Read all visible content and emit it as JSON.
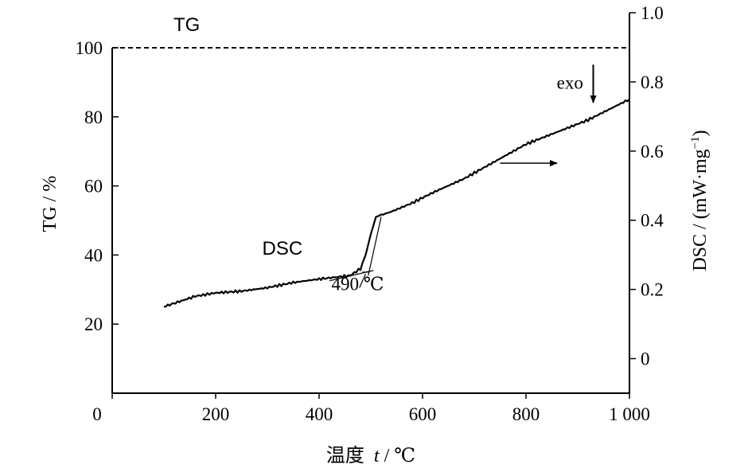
{
  "chart_data": {
    "type": "line",
    "title": "",
    "x_axis": {
      "label_prefix": "温度",
      "label_var": "t",
      "label_suffix": " / ℃",
      "range": [
        0,
        1000
      ],
      "ticks": [
        {
          "value": 0,
          "label": "0"
        },
        {
          "value": 200,
          "label": "200"
        },
        {
          "value": 400,
          "label": "400"
        },
        {
          "value": 600,
          "label": "600"
        },
        {
          "value": 800,
          "label": "800"
        },
        {
          "value": 1000,
          "label": "1 000"
        }
      ]
    },
    "y_left": {
      "label": "TG / %",
      "range": [
        0,
        100
      ],
      "ticks": [
        {
          "value": 20,
          "label": "20"
        },
        {
          "value": 40,
          "label": "40"
        },
        {
          "value": 60,
          "label": "60"
        },
        {
          "value": 80,
          "label": "80"
        },
        {
          "value": 100,
          "label": "100"
        }
      ]
    },
    "y_right": {
      "label_main": "DSC / (mW·mg",
      "label_sup": "−1",
      "label_close": ")",
      "range": [
        -0.1,
        1.0
      ],
      "ticks": [
        {
          "value": 0,
          "label": "0"
        },
        {
          "value": 0.2,
          "label": "0.2"
        },
        {
          "value": 0.4,
          "label": "0.4"
        },
        {
          "value": 0.6,
          "label": "0.6"
        },
        {
          "value": 0.8,
          "label": "0.8"
        },
        {
          "value": 1.0,
          "label": "1.0"
        }
      ]
    },
    "series": [
      {
        "name": "TG",
        "axis": "left",
        "style": "dashed",
        "x": [
          0,
          1000
        ],
        "y": [
          100,
          100
        ]
      },
      {
        "name": "DSC",
        "axis": "right",
        "style": "solid",
        "x": [
          100,
          130,
          160,
          200,
          250,
          300,
          350,
          400,
          430,
          460,
          480,
          490,
          500,
          510,
          520,
          540,
          580,
          620,
          680,
          740,
          800,
          860,
          920,
          960,
          1000
        ],
        "y": [
          0.15,
          0.165,
          0.18,
          0.19,
          0.195,
          0.205,
          0.22,
          0.23,
          0.235,
          0.24,
          0.26,
          0.3,
          0.36,
          0.41,
          0.415,
          0.425,
          0.45,
          0.48,
          0.52,
          0.57,
          0.62,
          0.655,
          0.69,
          0.72,
          0.75
        ]
      }
    ],
    "annotations": [
      {
        "id": "tg_label",
        "text": "TG",
        "x": 180,
        "y": 103.5,
        "axis": "left"
      },
      {
        "id": "dsc_label",
        "text": "DSC",
        "x": 290,
        "y": 0.3,
        "axis": "right"
      },
      {
        "id": "onset_label",
        "text": "490 ℃",
        "x": 490,
        "y": 0.24,
        "axis": "right"
      },
      {
        "id": "exo_label",
        "text": "exo",
        "x": 885,
        "y": 0.78,
        "axis": "right"
      },
      {
        "id": "axis_arrow",
        "text": "",
        "x": 750,
        "y": 0.565,
        "x_end": 860,
        "axis": "right"
      },
      {
        "id": "exo_arrow",
        "text": "",
        "x": 930,
        "y": 0.85,
        "y_end": 0.74,
        "axis": "right"
      }
    ],
    "onset_tangent": {
      "x": [
        420,
        505
      ],
      "y": [
        0.225,
        0.255
      ]
    },
    "rise_tangent": {
      "x": [
        495,
        520
      ],
      "y": [
        0.24,
        0.41
      ]
    },
    "grid": false,
    "legend": "none"
  }
}
